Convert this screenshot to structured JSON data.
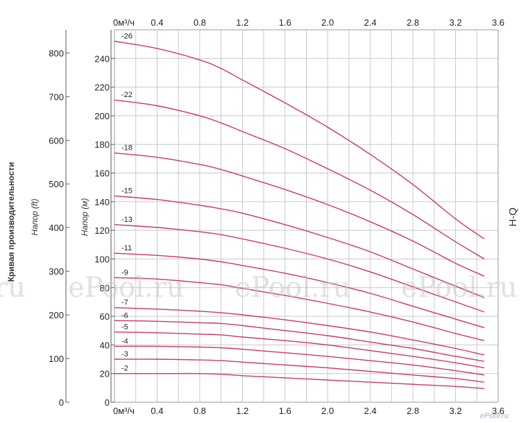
{
  "chart_data": {
    "type": "line",
    "x_unit_label": "0м³/ч",
    "x_ticks": [
      0.4,
      0.8,
      1.2,
      1.6,
      2.0,
      2.4,
      2.8,
      3.2,
      3.6
    ],
    "xlim": [
      0,
      3.6
    ],
    "y_ticks_m": [
      0,
      20,
      40,
      60,
      80,
      100,
      120,
      140,
      160,
      180,
      200,
      220,
      240
    ],
    "ylim_m": [
      0,
      260
    ],
    "y_ticks_ft": [
      0,
      100,
      200,
      300,
      400,
      500,
      600,
      700,
      800
    ],
    "ylabel_m": "Напор (м)",
    "ylabel_ft": "Напор (ft)",
    "side_title": "Кривая производительности",
    "curve_type_label": "H-Q",
    "grid": true,
    "series": [
      {
        "name": "-2",
        "x": [
          0,
          0.4,
          0.8,
          1.0,
          1.2,
          1.6,
          2.0,
          2.4,
          2.8,
          3.2,
          3.47
        ],
        "y": [
          20,
          20,
          20,
          19.5,
          18.5,
          17,
          15.5,
          14,
          12.5,
          11,
          9.5
        ]
      },
      {
        "name": "-3",
        "x": [
          0,
          0.4,
          0.8,
          1.0,
          1.2,
          1.6,
          2.0,
          2.4,
          2.8,
          3.2,
          3.47
        ],
        "y": [
          30,
          30,
          29.5,
          29,
          28,
          26,
          24,
          21.5,
          19,
          16.5,
          14
        ]
      },
      {
        "name": "-4",
        "x": [
          0,
          0.4,
          0.8,
          1.0,
          1.2,
          1.6,
          2.0,
          2.4,
          2.8,
          3.2,
          3.47
        ],
        "y": [
          39,
          39,
          38.5,
          38,
          37,
          34.5,
          32,
          29,
          26,
          22,
          19
        ]
      },
      {
        "name": "-5",
        "x": [
          0,
          0.4,
          0.8,
          1.0,
          1.2,
          1.6,
          2.0,
          2.4,
          2.8,
          3.2,
          3.47
        ],
        "y": [
          49,
          48.5,
          47.5,
          47,
          45.5,
          43,
          40,
          36,
          32,
          27.5,
          24
        ]
      },
      {
        "name": "-6",
        "x": [
          0,
          0.4,
          0.8,
          1.0,
          1.2,
          1.6,
          2.0,
          2.4,
          2.8,
          3.2,
          3.47
        ],
        "y": [
          57,
          56.5,
          55.5,
          55,
          53.5,
          50,
          46.5,
          42,
          37.5,
          32,
          28.5
        ]
      },
      {
        "name": "-7",
        "x": [
          0,
          0.4,
          0.8,
          1.0,
          1.2,
          1.6,
          2.0,
          2.4,
          2.8,
          3.2,
          3.47
        ],
        "y": [
          66,
          65,
          63.5,
          62.5,
          61,
          57.5,
          53.5,
          49,
          43.5,
          37.5,
          33
        ]
      },
      {
        "name": "-9",
        "x": [
          0,
          0.4,
          0.8,
          1.0,
          1.2,
          1.6,
          2.0,
          2.4,
          2.8,
          3.2,
          3.47
        ],
        "y": [
          87,
          86,
          83.5,
          82,
          79.5,
          74.5,
          69,
          63,
          56,
          48,
          43
        ]
      },
      {
        "name": "-11",
        "x": [
          0,
          0.4,
          0.8,
          1.0,
          1.2,
          1.6,
          2.0,
          2.4,
          2.8,
          3.2,
          3.47
        ],
        "y": [
          104,
          102.5,
          100,
          98,
          95.5,
          90,
          83.5,
          76,
          67,
          58,
          52
        ]
      },
      {
        "name": "-13",
        "x": [
          0,
          0.4,
          0.8,
          1.0,
          1.2,
          1.6,
          2.0,
          2.4,
          2.8,
          3.2,
          3.47
        ],
        "y": [
          124,
          122,
          119,
          117,
          114,
          107.5,
          100,
          91,
          80.5,
          70,
          63
        ]
      },
      {
        "name": "-15",
        "x": [
          0,
          0.4,
          0.8,
          1.0,
          1.2,
          1.6,
          2.0,
          2.4,
          2.8,
          3.2,
          3.47
        ],
        "y": [
          144,
          141.5,
          137.5,
          135,
          132,
          124,
          115,
          105,
          93,
          81,
          73
        ]
      },
      {
        "name": "-18",
        "x": [
          0,
          0.4,
          0.8,
          1.0,
          1.2,
          1.6,
          2.0,
          2.4,
          2.8,
          3.2,
          3.47
        ],
        "y": [
          174,
          171,
          166,
          162.5,
          158,
          148.5,
          138,
          126,
          112.5,
          97,
          88
        ]
      },
      {
        "name": "-22",
        "x": [
          0,
          0.4,
          0.8,
          1.0,
          1.2,
          1.6,
          2.0,
          2.4,
          2.8,
          3.2,
          3.47
        ],
        "y": [
          211,
          207,
          200,
          195,
          189,
          177,
          163,
          148,
          131,
          112,
          100
        ]
      },
      {
        "name": "-26",
        "x": [
          0,
          0.4,
          0.8,
          1.0,
          1.2,
          1.6,
          2.0,
          2.4,
          2.8,
          3.2,
          3.47
        ],
        "y": [
          252,
          247,
          239,
          233,
          225,
          209,
          192,
          173,
          152,
          128,
          114
        ]
      }
    ],
    "line_color": "#c8385f",
    "grid_color": "#c8c8c8"
  },
  "watermarks": [
    "ru",
    "ePool.ru",
    "ePool.ru",
    "ePool.ru"
  ],
  "brand_mark": "ePool.ru"
}
